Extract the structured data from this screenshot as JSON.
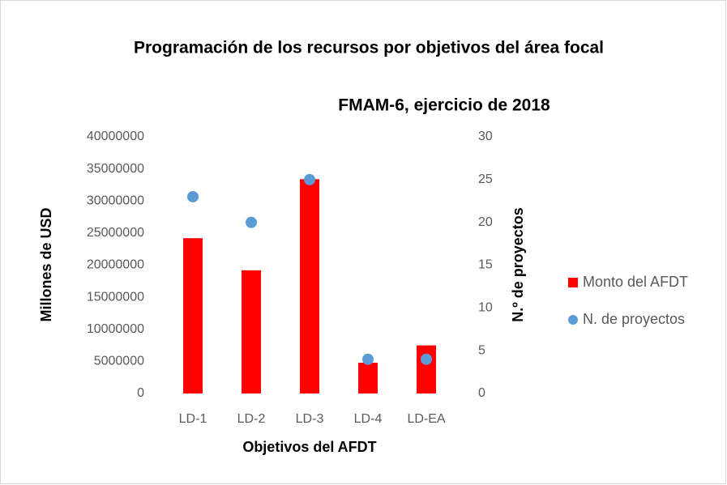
{
  "chart_data": {
    "type": "bar",
    "title": "Programación de los recursos por objetivos del área focal",
    "subtitle": "FMAM-6, ejercicio de 2018",
    "x_label": "Objetivos del AFDT",
    "y_label": "Millones de USD",
    "y2_label": "N.º de proyectos",
    "categories": [
      "LD-1",
      "LD-2",
      "LD-3",
      "LD-4",
      "LD-EA"
    ],
    "series": [
      {
        "name": "Monto del AFDT",
        "color": "#ff0000",
        "type": "bar",
        "values": [
          24200000,
          19200000,
          33400000,
          4800000,
          7500000
        ]
      },
      {
        "name": "N. de proyectos",
        "color": "#5b9bd5",
        "type": "scatter",
        "axis": "y2",
        "values": [
          23,
          20,
          25,
          4,
          4
        ]
      }
    ],
    "ylim": [
      0,
      40000000
    ],
    "yticks": [
      0,
      5000000,
      10000000,
      15000000,
      20000000,
      25000000,
      30000000,
      35000000,
      40000000
    ],
    "y2lim": [
      0,
      30
    ],
    "y2ticks": [
      0,
      5,
      10,
      15,
      20,
      25,
      30
    ],
    "grid": false,
    "legend": "right"
  }
}
